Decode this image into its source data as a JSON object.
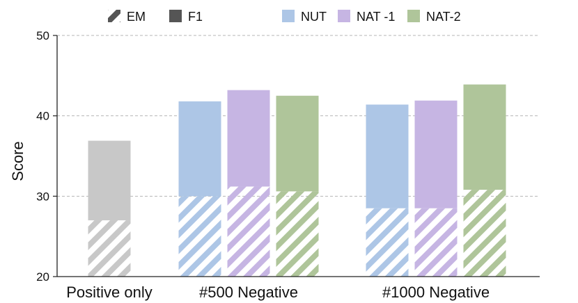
{
  "chart_data": {
    "type": "bar",
    "ylabel": "Score",
    "ylim": [
      20,
      50
    ],
    "yticks": [
      "20",
      "30",
      "40",
      "50"
    ],
    "grid": true,
    "categories": [
      "Positive only",
      "#500 Negative",
      "#1000 Negative"
    ],
    "legend_metrics": [
      {
        "label": "EM",
        "style": "hatched"
      },
      {
        "label": "F1",
        "style": "solid"
      }
    ],
    "legend_variants": [
      {
        "label": "NUT",
        "color": "#adc6e6"
      },
      {
        "label": "NAT -1",
        "color": "#c6b5e3"
      },
      {
        "label": "NAT-2",
        "color": "#afc59a"
      }
    ],
    "groups": [
      {
        "category": "Positive only",
        "bars": [
          {
            "variant": null,
            "color": "#c8c8c8",
            "em": 27.0,
            "f1": 36.9
          }
        ]
      },
      {
        "category": "#500 Negative",
        "bars": [
          {
            "variant": "NUT",
            "color": "#adc6e6",
            "em": 30.0,
            "f1": 41.8
          },
          {
            "variant": "NAT -1",
            "color": "#c6b5e3",
            "em": 31.2,
            "f1": 43.2
          },
          {
            "variant": "NAT-2",
            "color": "#afc59a",
            "em": 30.6,
            "f1": 42.5
          }
        ]
      },
      {
        "category": "#1000 Negative",
        "bars": [
          {
            "variant": "NUT",
            "color": "#adc6e6",
            "em": 28.5,
            "f1": 41.4
          },
          {
            "variant": "NAT -1",
            "color": "#c6b5e3",
            "em": 28.5,
            "f1": 41.9
          },
          {
            "variant": "NAT-2",
            "color": "#afc59a",
            "em": 30.8,
            "f1": 43.9
          }
        ]
      }
    ]
  }
}
